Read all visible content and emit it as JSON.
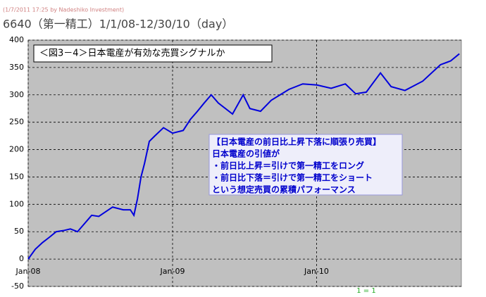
{
  "chart_data": {
    "type": "line",
    "header": "(1/7/2011 17:25 by Nadeshiko Investment)",
    "title": "6640（第一精工）1/1/08-12/30/10（day）",
    "annotation": "＜図3－4＞日本電産が有効な売買シグナルか",
    "notes": [
      "【日本電産の前日比上昇下落に順張り売買】",
      "日本電産の引値が",
      "・前日比上昇＝引けで第一精工をロング",
      "・前日比下落＝引けで第一精工をショート",
      "という想定売買の累積パフォーマンス"
    ],
    "footnote": "1 = 1",
    "color": "#0000dd",
    "x": [
      0,
      18,
      36,
      54,
      71,
      89,
      107,
      125,
      161,
      179,
      214,
      241,
      259,
      268,
      277,
      286,
      295,
      307,
      321,
      343,
      366,
      393,
      411,
      429,
      446,
      464,
      482,
      518,
      545,
      562,
      589,
      616,
      661,
      696,
      732,
      768,
      804,
      830,
      857,
      893,
      920,
      955,
      1000,
      1045,
      1071,
      1093
    ],
    "values": [
      0,
      18,
      30,
      40,
      50,
      52,
      55,
      50,
      80,
      78,
      95,
      90,
      90,
      80,
      110,
      150,
      175,
      215,
      225,
      240,
      230,
      235,
      255,
      270,
      285,
      300,
      285,
      265,
      300,
      275,
      270,
      290,
      310,
      320,
      318,
      312,
      320,
      302,
      305,
      340,
      315,
      308,
      325,
      355,
      362,
      375
    ],
    "xlim": [
      0,
      1098
    ],
    "xticks": [
      {
        "value": 0,
        "label": "Jan-08"
      },
      {
        "value": 366,
        "label": "Jan-09"
      },
      {
        "value": 731,
        "label": "Jan-10"
      }
    ],
    "ylim": [
      -50,
      400
    ],
    "yticks": [
      -50,
      0,
      50,
      100,
      150,
      200,
      250,
      300,
      350,
      400
    ],
    "grid": true
  }
}
